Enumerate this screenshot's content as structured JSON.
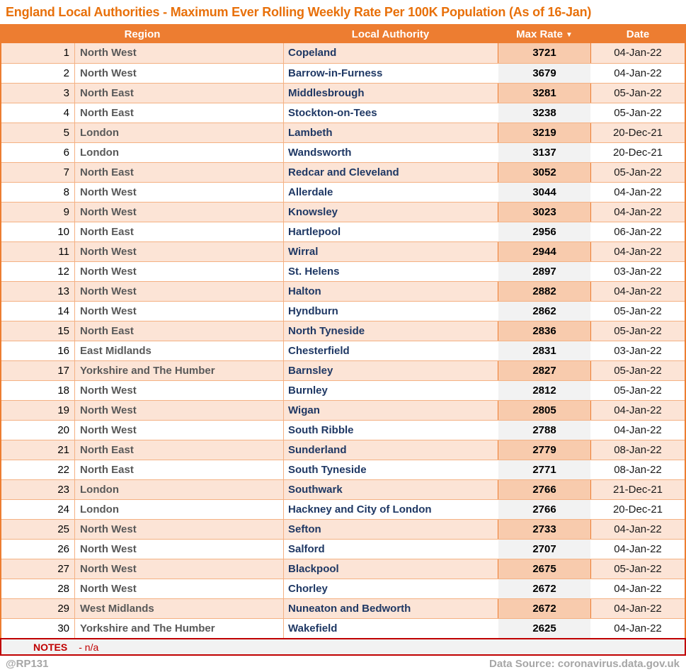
{
  "title": "England Local Authorities - Maximum Ever Rolling Weekly Rate Per 100K Population (As of 16-Jan)",
  "table": {
    "headers": {
      "region": "Region",
      "authority": "Local Authority",
      "rate": "Max Rate",
      "date": "Date"
    },
    "sort_icon": "▼"
  },
  "notes": {
    "label": "NOTES",
    "text": "- n/a"
  },
  "footer": {
    "left": "@RP131",
    "right": "Data Source: coronavirus.data.gov.uk"
  },
  "colors": {
    "accent_orange": "#ED7D31",
    "title_orange": "#E8700A",
    "row_peach": "#FCE4D6",
    "rate_cell_peach": "#F8CBAD",
    "rate_cell_gray": "#F2F2F2",
    "border_light_orange": "#F4B183",
    "authority_navy": "#1F3864",
    "region_gray": "#595959",
    "notes_red": "#C00000",
    "footer_gray": "#A6A6A6"
  },
  "chart_data": {
    "type": "table",
    "title": "England Local Authorities - Maximum Ever Rolling Weekly Rate Per 100K Population (As of 16-Jan)",
    "columns": [
      "",
      "Region",
      "Local Authority",
      "Max Rate",
      "Date"
    ],
    "sort": "Max Rate descending",
    "rows": [
      [
        1,
        "North West",
        "Copeland",
        3721,
        "04-Jan-22"
      ],
      [
        2,
        "North West",
        "Barrow-in-Furness",
        3679,
        "04-Jan-22"
      ],
      [
        3,
        "North East",
        "Middlesbrough",
        3281,
        "05-Jan-22"
      ],
      [
        4,
        "North East",
        "Stockton-on-Tees",
        3238,
        "05-Jan-22"
      ],
      [
        5,
        "London",
        "Lambeth",
        3219,
        "20-Dec-21"
      ],
      [
        6,
        "London",
        "Wandsworth",
        3137,
        "20-Dec-21"
      ],
      [
        7,
        "North East",
        "Redcar and Cleveland",
        3052,
        "05-Jan-22"
      ],
      [
        8,
        "North West",
        "Allerdale",
        3044,
        "04-Jan-22"
      ],
      [
        9,
        "North West",
        "Knowsley",
        3023,
        "04-Jan-22"
      ],
      [
        10,
        "North East",
        "Hartlepool",
        2956,
        "06-Jan-22"
      ],
      [
        11,
        "North West",
        "Wirral",
        2944,
        "04-Jan-22"
      ],
      [
        12,
        "North West",
        "St. Helens",
        2897,
        "03-Jan-22"
      ],
      [
        13,
        "North West",
        "Halton",
        2882,
        "04-Jan-22"
      ],
      [
        14,
        "North West",
        "Hyndburn",
        2862,
        "05-Jan-22"
      ],
      [
        15,
        "North East",
        "North Tyneside",
        2836,
        "05-Jan-22"
      ],
      [
        16,
        "East Midlands",
        "Chesterfield",
        2831,
        "03-Jan-22"
      ],
      [
        17,
        "Yorkshire and The Humber",
        "Barnsley",
        2827,
        "05-Jan-22"
      ],
      [
        18,
        "North West",
        "Burnley",
        2812,
        "05-Jan-22"
      ],
      [
        19,
        "North West",
        "Wigan",
        2805,
        "04-Jan-22"
      ],
      [
        20,
        "North West",
        "South Ribble",
        2788,
        "04-Jan-22"
      ],
      [
        21,
        "North East",
        "Sunderland",
        2779,
        "08-Jan-22"
      ],
      [
        22,
        "North East",
        "South Tyneside",
        2771,
        "08-Jan-22"
      ],
      [
        23,
        "London",
        "Southwark",
        2766,
        "21-Dec-21"
      ],
      [
        24,
        "London",
        "Hackney and City of London",
        2766,
        "20-Dec-21"
      ],
      [
        25,
        "North West",
        "Sefton",
        2733,
        "04-Jan-22"
      ],
      [
        26,
        "North West",
        "Salford",
        2707,
        "04-Jan-22"
      ],
      [
        27,
        "North West",
        "Blackpool",
        2675,
        "05-Jan-22"
      ],
      [
        28,
        "North West",
        "Chorley",
        2672,
        "04-Jan-22"
      ],
      [
        29,
        "West Midlands",
        "Nuneaton and Bedworth",
        2672,
        "04-Jan-22"
      ],
      [
        30,
        "Yorkshire and The Humber",
        "Wakefield",
        2625,
        "04-Jan-22"
      ]
    ]
  }
}
